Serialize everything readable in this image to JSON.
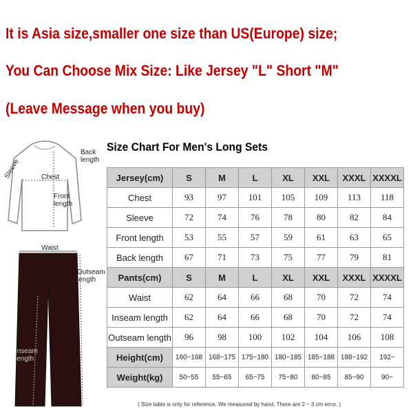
{
  "header": {
    "lines": [
      "It is Asia size,smaller one size than US(Europe) size;",
      "You Can Choose Mix Size: Like Jersey \"L\" Short \"M\"",
      "(Leave Message when you buy)"
    ]
  },
  "diagram": {
    "labels": [
      "Sleeve",
      "Back length",
      "Chest",
      "Front length",
      "Waist",
      "Outseam length",
      "Inseam length"
    ]
  },
  "table": {
    "title": "Size Chart For Men's Long Sets",
    "rows": [
      [
        "Jersey(cm)",
        "S",
        "M",
        "L",
        "XL",
        "XXL",
        "XXXL",
        "XXXXL"
      ],
      [
        "Chest",
        93,
        97,
        101,
        105,
        109,
        113,
        118
      ],
      [
        "Sleeve",
        72,
        74,
        76,
        78,
        80,
        82,
        84
      ],
      [
        "Front length",
        53,
        55,
        57,
        59,
        61,
        63,
        65
      ],
      [
        "Back length",
        67,
        71,
        73,
        75,
        77,
        79,
        81
      ],
      [
        "Pants(cm)",
        "S",
        "M",
        "L",
        "XL",
        "XXL",
        "XXXL",
        "XXXXL"
      ],
      [
        "Waist",
        62,
        64,
        66,
        68,
        70,
        72,
        74
      ],
      [
        "Inseam length",
        62,
        64,
        66,
        68,
        70,
        72,
        74
      ],
      [
        "Outseam length",
        96,
        98,
        100,
        102,
        104,
        106,
        108
      ],
      [
        "Height(cm)",
        "160~168",
        "168~175",
        "175~180",
        "180~185",
        "185~188",
        "188~192",
        "192~"
      ],
      [
        "Weight(kg)",
        "50~55",
        "55~65",
        "65~75",
        "75~80",
        "80~85",
        "85~90",
        "90~"
      ]
    ]
  },
  "footnote": "( Size table is only for reference. We measured by hand. There are 2 ~ 3 cm error. )"
}
